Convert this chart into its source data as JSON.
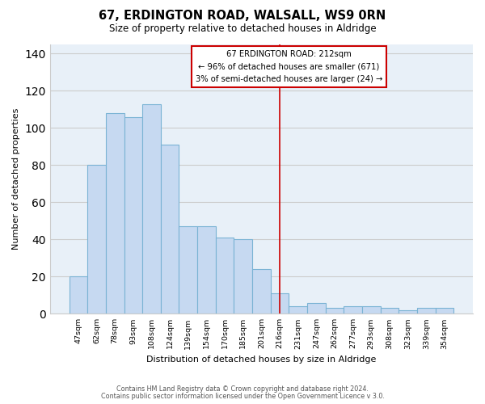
{
  "title": "67, ERDINGTON ROAD, WALSALL, WS9 0RN",
  "subtitle": "Size of property relative to detached houses in Aldridge",
  "xlabel": "Distribution of detached houses by size in Aldridge",
  "ylabel": "Number of detached properties",
  "bar_labels": [
    "47sqm",
    "62sqm",
    "78sqm",
    "93sqm",
    "108sqm",
    "124sqm",
    "139sqm",
    "154sqm",
    "170sqm",
    "185sqm",
    "201sqm",
    "216sqm",
    "231sqm",
    "247sqm",
    "262sqm",
    "277sqm",
    "293sqm",
    "308sqm",
    "323sqm",
    "339sqm",
    "354sqm"
  ],
  "bar_values": [
    20,
    80,
    108,
    106,
    113,
    91,
    47,
    47,
    41,
    40,
    24,
    11,
    4,
    6,
    3,
    4,
    4,
    3,
    2,
    3,
    3
  ],
  "bar_color": "#c6d9f1",
  "bar_edge_color": "#7ab3d4",
  "vline_x": 11,
  "vline_color": "#cc0000",
  "annotation_title": "67 ERDINGTON ROAD: 212sqm",
  "annotation_line1": "← 96% of detached houses are smaller (671)",
  "annotation_line2": "3% of semi-detached houses are larger (24) →",
  "annotation_box_color": "#ffffff",
  "annotation_box_edge": "#cc0000",
  "ylim": [
    0,
    145
  ],
  "yticks": [
    0,
    20,
    40,
    60,
    80,
    100,
    120,
    140
  ],
  "footer1": "Contains HM Land Registry data © Crown copyright and database right 2024.",
  "footer2": "Contains public sector information licensed under the Open Government Licence v 3.0.",
  "bg_color": "#ffffff",
  "grid_color": "#cccccc"
}
